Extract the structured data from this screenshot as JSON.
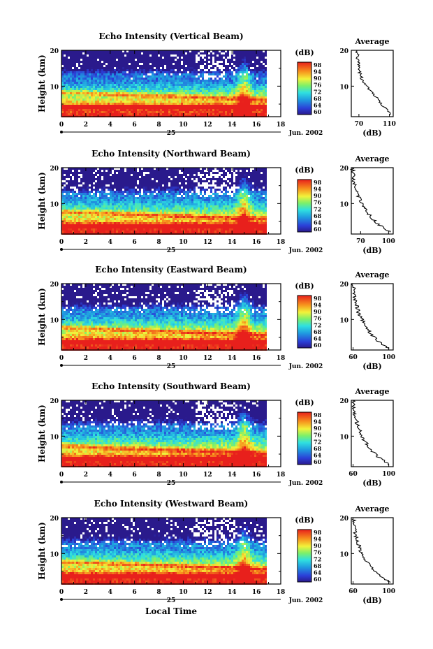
{
  "figure": {
    "xlabel": "Local Time"
  },
  "chart_data": [
    {
      "type": "heatmap",
      "title": "Echo Intensity (Vertical Beam)",
      "ylabel": "Height (km)",
      "x_ticks": [
        "0",
        "2",
        "4",
        "6",
        "8",
        "10",
        "12",
        "14",
        "16",
        "18"
      ],
      "y_ticks": [
        "20",
        "10"
      ],
      "xlim": [
        0,
        18
      ],
      "ylim": [
        1.5,
        20
      ],
      "data_end_hour": 16.7,
      "date_day": "25",
      "date_month": "Jun. 2002",
      "colorbar": {
        "unit": "(dB)",
        "range": [
          60,
          98
        ],
        "ticks": [
          "98",
          "94",
          "90",
          "76",
          "72",
          "68",
          "64",
          "60"
        ]
      },
      "profile": {
        "title": "Average",
        "xlabel": "(dB)",
        "x_ticks": [
          "70",
          "110"
        ],
        "y_ticks": [
          "20",
          "10"
        ],
        "xlim": [
          60,
          115
        ],
        "points": [
          [
            2,
            112
          ],
          [
            3,
            108
          ],
          [
            4,
            104
          ],
          [
            5,
            100
          ],
          [
            6,
            97
          ],
          [
            7,
            92
          ],
          [
            8,
            88
          ],
          [
            9,
            84
          ],
          [
            10,
            80
          ],
          [
            11,
            77
          ],
          [
            12,
            74
          ],
          [
            13,
            72
          ],
          [
            14,
            71
          ],
          [
            15,
            70
          ],
          [
            16,
            69
          ],
          [
            17,
            69
          ],
          [
            18,
            68
          ],
          [
            19,
            68
          ],
          [
            20,
            67
          ]
        ]
      },
      "bands": {
        "low": 4.5,
        "mid": 8.5,
        "cloud": 13.5
      }
    },
    {
      "type": "heatmap",
      "title": "Echo Intensity (Northward Beam)",
      "ylabel": "Height (km)",
      "x_ticks": [
        "0",
        "2",
        "4",
        "6",
        "8",
        "10",
        "12",
        "14",
        "16",
        "18"
      ],
      "y_ticks": [
        "20",
        "10"
      ],
      "xlim": [
        0,
        18
      ],
      "ylim": [
        1.5,
        20
      ],
      "data_end_hour": 16.7,
      "date_day": "25",
      "date_month": "Jun. 2002",
      "colorbar": {
        "unit": "(dB)",
        "range": [
          60,
          98
        ],
        "ticks": [
          "98",
          "94",
          "90",
          "76",
          "72",
          "68",
          "64",
          "60"
        ]
      },
      "profile": {
        "title": "Average",
        "xlabel": "(dB)",
        "x_ticks": [
          "70",
          "100"
        ],
        "y_ticks": [
          "20",
          "10"
        ],
        "xlim": [
          60,
          105
        ],
        "points": [
          [
            2,
            102
          ],
          [
            3,
            96
          ],
          [
            4,
            90
          ],
          [
            5,
            86
          ],
          [
            6,
            82
          ],
          [
            7,
            79
          ],
          [
            8,
            76
          ],
          [
            9,
            74
          ],
          [
            10,
            72
          ],
          [
            11,
            70
          ],
          [
            12,
            68
          ],
          [
            13,
            66
          ],
          [
            14,
            65
          ],
          [
            15,
            64
          ],
          [
            16,
            63
          ],
          [
            17,
            63
          ],
          [
            18,
            62
          ],
          [
            19,
            62
          ],
          [
            20,
            61
          ]
        ]
      },
      "bands": {
        "low": 4.0,
        "mid": 8.0,
        "cloud": 13.0
      }
    },
    {
      "type": "heatmap",
      "title": "Echo Intensity (Eastward Beam)",
      "ylabel": "Height (km)",
      "x_ticks": [
        "0",
        "2",
        "4",
        "6",
        "8",
        "10",
        "12",
        "14",
        "16",
        "18"
      ],
      "y_ticks": [
        "20",
        "10"
      ],
      "xlim": [
        0,
        18
      ],
      "ylim": [
        1.5,
        20
      ],
      "data_end_hour": 16.7,
      "date_day": "25",
      "date_month": "Jun. 2002",
      "colorbar": {
        "unit": "(dB)",
        "range": [
          60,
          98
        ],
        "ticks": [
          "98",
          "94",
          "90",
          "76",
          "72",
          "68",
          "64",
          "60"
        ]
      },
      "profile": {
        "title": "Average",
        "xlabel": "(dB)",
        "x_ticks": [
          "60",
          "100"
        ],
        "y_ticks": [
          "20",
          "10"
        ],
        "xlim": [
          58,
          105
        ],
        "points": [
          [
            2,
            100
          ],
          [
            3,
            94
          ],
          [
            4,
            88
          ],
          [
            5,
            84
          ],
          [
            6,
            80
          ],
          [
            7,
            77
          ],
          [
            8,
            74
          ],
          [
            9,
            72
          ],
          [
            10,
            70
          ],
          [
            11,
            68
          ],
          [
            12,
            66
          ],
          [
            13,
            65
          ],
          [
            14,
            64
          ],
          [
            15,
            63
          ],
          [
            16,
            62
          ],
          [
            17,
            62
          ],
          [
            18,
            61
          ],
          [
            19,
            61
          ],
          [
            20,
            60
          ]
        ]
      },
      "bands": {
        "low": 4.0,
        "mid": 8.0,
        "cloud": 13.0
      }
    },
    {
      "type": "heatmap",
      "title": "Echo Intensity (Southward Beam)",
      "ylabel": "Height (km)",
      "x_ticks": [
        "0",
        "2",
        "4",
        "6",
        "8",
        "10",
        "12",
        "14",
        "16",
        "18"
      ],
      "y_ticks": [
        "20",
        "10"
      ],
      "xlim": [
        0,
        18
      ],
      "ylim": [
        1.5,
        20
      ],
      "data_end_hour": 16.7,
      "date_day": "25",
      "date_month": "Jun. 2002",
      "colorbar": {
        "unit": "(dB)",
        "range": [
          60,
          98
        ],
        "ticks": [
          "98",
          "94",
          "90",
          "76",
          "72",
          "68",
          "64",
          "60"
        ]
      },
      "profile": {
        "title": "Average",
        "xlabel": "(dB)",
        "x_ticks": [
          "60",
          "100"
        ],
        "y_ticks": [
          "20",
          "10"
        ],
        "xlim": [
          58,
          105
        ],
        "points": [
          [
            2,
            101
          ],
          [
            3,
            95
          ],
          [
            4,
            89
          ],
          [
            5,
            85
          ],
          [
            6,
            81
          ],
          [
            7,
            78
          ],
          [
            8,
            75
          ],
          [
            9,
            72
          ],
          [
            10,
            70
          ],
          [
            11,
            68
          ],
          [
            12,
            67
          ],
          [
            13,
            65
          ],
          [
            14,
            64
          ],
          [
            15,
            63
          ],
          [
            16,
            62
          ],
          [
            17,
            62
          ],
          [
            18,
            61
          ],
          [
            19,
            61
          ],
          [
            20,
            60
          ]
        ]
      },
      "bands": {
        "low": 4.0,
        "mid": 7.5,
        "cloud": 13.0
      }
    },
    {
      "type": "heatmap",
      "title": "Echo Intensity (Westward Beam)",
      "ylabel": "Height (km)",
      "x_ticks": [
        "0",
        "2",
        "4",
        "6",
        "8",
        "10",
        "12",
        "14",
        "16",
        "18"
      ],
      "y_ticks": [
        "20",
        "10"
      ],
      "xlim": [
        0,
        18
      ],
      "ylim": [
        1.5,
        20
      ],
      "data_end_hour": 16.7,
      "date_day": "25",
      "date_month": "Jun. 2002",
      "colorbar": {
        "unit": "(dB)",
        "range": [
          60,
          98
        ],
        "ticks": [
          "98",
          "94",
          "90",
          "76",
          "72",
          "68",
          "64",
          "60"
        ]
      },
      "profile": {
        "title": "Average",
        "xlabel": "(dB)",
        "x_ticks": [
          "60",
          "100"
        ],
        "y_ticks": [
          "20",
          "10"
        ],
        "xlim": [
          58,
          105
        ],
        "points": [
          [
            2,
            101
          ],
          [
            3,
            95
          ],
          [
            4,
            89
          ],
          [
            5,
            85
          ],
          [
            6,
            81
          ],
          [
            7,
            78
          ],
          [
            8,
            75
          ],
          [
            9,
            72
          ],
          [
            10,
            70
          ],
          [
            11,
            68
          ],
          [
            12,
            67
          ],
          [
            13,
            65
          ],
          [
            14,
            64
          ],
          [
            15,
            63
          ],
          [
            16,
            62
          ],
          [
            17,
            62
          ],
          [
            18,
            61
          ],
          [
            19,
            61
          ],
          [
            20,
            60
          ]
        ]
      },
      "bands": {
        "low": 4.0,
        "mid": 8.0,
        "cloud": 13.0
      }
    }
  ]
}
